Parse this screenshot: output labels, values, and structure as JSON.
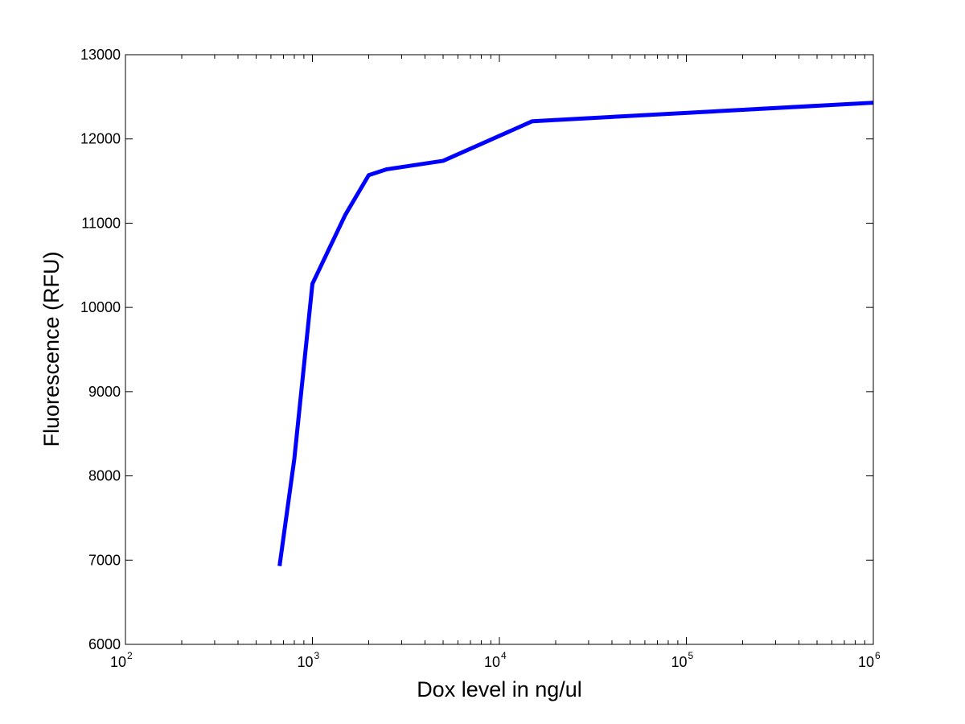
{
  "chart_data": {
    "type": "line",
    "xlabel": "Dox level in ng/ul",
    "ylabel": "Fluorescence (RFU)",
    "xscale": "log",
    "xlim": [
      100,
      1000000
    ],
    "ylim": [
      6000,
      13000
    ],
    "grid": false,
    "x_ticks": [
      {
        "base": "10",
        "exp": "2",
        "value": 100
      },
      {
        "base": "10",
        "exp": "3",
        "value": 1000
      },
      {
        "base": "10",
        "exp": "4",
        "value": 10000
      },
      {
        "base": "10",
        "exp": "5",
        "value": 100000
      },
      {
        "base": "10",
        "exp": "6",
        "value": 1000000
      }
    ],
    "y_ticks": [
      {
        "label": "6000",
        "value": 6000
      },
      {
        "label": "7000",
        "value": 7000
      },
      {
        "label": "8000",
        "value": 8000
      },
      {
        "label": "9000",
        "value": 9000
      },
      {
        "label": "10000",
        "value": 10000
      },
      {
        "label": "11000",
        "value": 11000
      },
      {
        "label": "12000",
        "value": 12000
      },
      {
        "label": "13000",
        "value": 13000
      }
    ],
    "series": [
      {
        "color": "#0000ff",
        "x": [
          667,
          800,
          1000,
          1500,
          2000,
          2500,
          5000,
          15000,
          1000000
        ],
        "y": [
          6930,
          8200,
          10280,
          11100,
          11570,
          11640,
          11740,
          12210,
          12430
        ]
      }
    ]
  }
}
